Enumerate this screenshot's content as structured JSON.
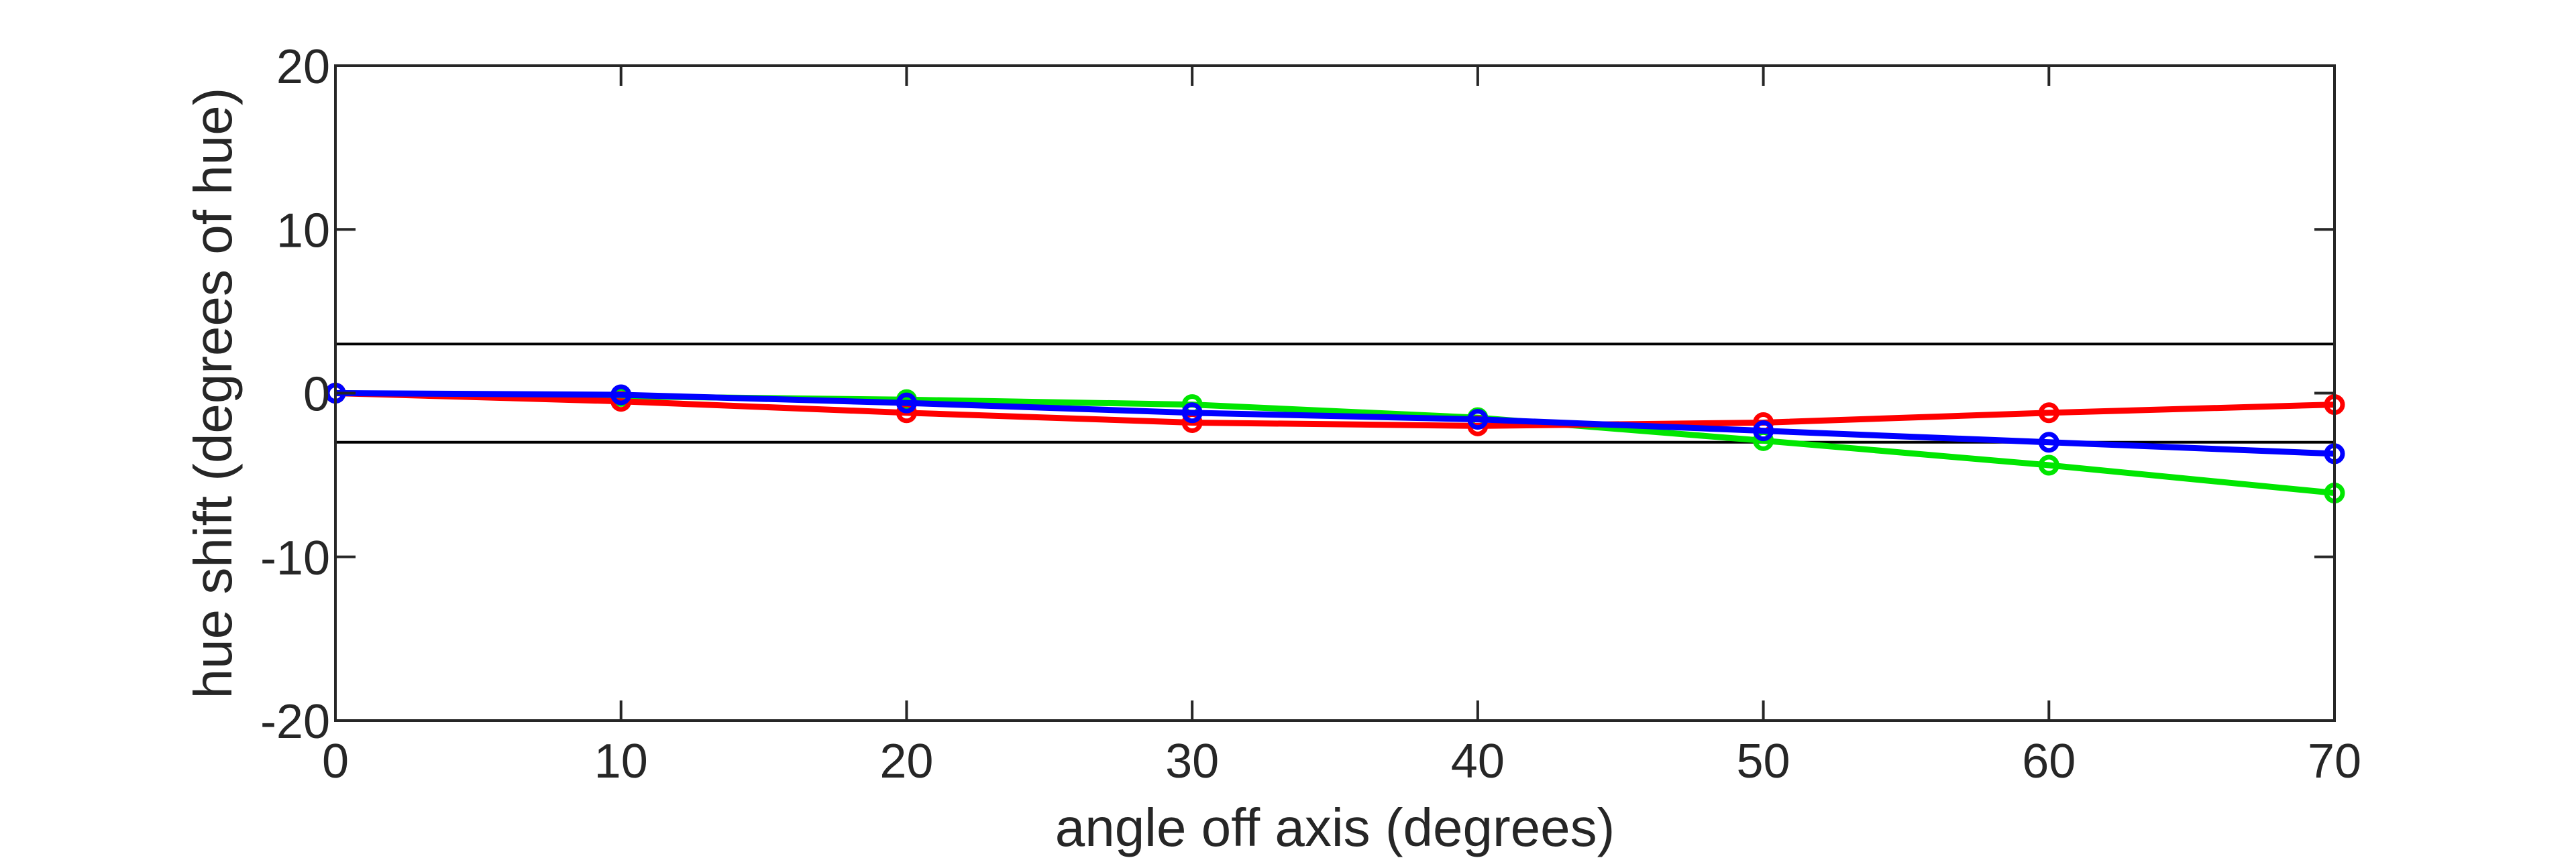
{
  "chart_data": {
    "type": "line",
    "title": "",
    "xlabel": "angle off axis (degrees)",
    "ylabel": "hue shift (degrees of hue)",
    "xlim": [
      0,
      70
    ],
    "ylim": [
      -20,
      20
    ],
    "xticks": [
      0,
      10,
      20,
      30,
      40,
      50,
      60,
      70
    ],
    "yticks": [
      -20,
      -10,
      0,
      10,
      20
    ],
    "xtick_labels": [
      "0",
      "10",
      "20",
      "30",
      "40",
      "50",
      "60",
      "70"
    ],
    "ytick_labels": [
      "-20",
      "-10",
      "0",
      "10",
      "20"
    ],
    "grid": false,
    "reference_lines": [
      3,
      -3
    ],
    "x": [
      0,
      10,
      20,
      30,
      40,
      50,
      60,
      70
    ],
    "series": [
      {
        "color": "#00e600",
        "values": [
          0,
          -0.2,
          -0.4,
          -0.7,
          -1.5,
          -2.9,
          -4.4,
          -6.1
        ]
      },
      {
        "color": "#ff0000",
        "values": [
          0,
          -0.5,
          -1.2,
          -1.8,
          -2.0,
          -1.8,
          -1.2,
          -0.7
        ]
      },
      {
        "color": "#0000ff",
        "values": [
          0,
          -0.1,
          -0.6,
          -1.2,
          -1.6,
          -2.3,
          -3.0,
          -3.7
        ]
      }
    ]
  }
}
